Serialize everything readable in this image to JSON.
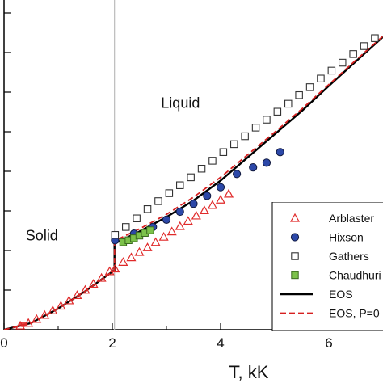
{
  "chart_data": {
    "type": "scatter",
    "xlabel": "T, kK",
    "ylabel": "",
    "xlim": [
      0,
      7
    ],
    "ylim": [
      0,
      4.6
    ],
    "x_ticks": [
      "0",
      "2",
      "4",
      "6"
    ],
    "annotations": [
      {
        "text": "Liquid",
        "x": 2.9,
        "y": 3.35
      },
      {
        "text": "Solid",
        "x": 0.4,
        "y": 1.35
      }
    ],
    "vline": {
      "x": 2.04
    },
    "grid": false,
    "legend": "right",
    "series": [
      {
        "name": "Arblaster",
        "marker": "triangle-open",
        "color": "#e02a2a",
        "points": [
          [
            0.3,
            0.06
          ],
          [
            0.45,
            0.1
          ],
          [
            0.6,
            0.16
          ],
          [
            0.75,
            0.22
          ],
          [
            0.9,
            0.29
          ],
          [
            1.05,
            0.36
          ],
          [
            1.2,
            0.44
          ],
          [
            1.35,
            0.52
          ],
          [
            1.5,
            0.6
          ],
          [
            1.65,
            0.69
          ],
          [
            1.8,
            0.78
          ],
          [
            1.95,
            0.88
          ],
          [
            2.05,
            0.92
          ],
          [
            2.2,
            1.02
          ],
          [
            2.35,
            1.09
          ],
          [
            2.5,
            1.17
          ],
          [
            2.65,
            1.24
          ],
          [
            2.8,
            1.32
          ],
          [
            2.95,
            1.4
          ],
          [
            3.1,
            1.48
          ],
          [
            3.25,
            1.56
          ],
          [
            3.4,
            1.64
          ],
          [
            3.55,
            1.72
          ],
          [
            3.7,
            1.8
          ],
          [
            3.85,
            1.88
          ],
          [
            4.0,
            1.96
          ],
          [
            4.15,
            2.05
          ]
        ]
      },
      {
        "name": "Hixson",
        "marker": "circle",
        "color": "#2c48a8",
        "points": [
          [
            2.05,
            1.35
          ],
          [
            2.4,
            1.45
          ],
          [
            2.75,
            1.55
          ],
          [
            3.0,
            1.66
          ],
          [
            3.25,
            1.78
          ],
          [
            3.5,
            1.9
          ],
          [
            3.75,
            2.02
          ],
          [
            4.0,
            2.15
          ],
          [
            4.3,
            2.35
          ],
          [
            4.6,
            2.45
          ],
          [
            4.85,
            2.52
          ],
          [
            5.1,
            2.68
          ]
        ]
      },
      {
        "name": "Gathers",
        "marker": "square-open",
        "color": "#333333",
        "points": [
          [
            2.05,
            1.43
          ],
          [
            2.25,
            1.55
          ],
          [
            2.45,
            1.68
          ],
          [
            2.65,
            1.82
          ],
          [
            2.85,
            1.94
          ],
          [
            3.05,
            2.06
          ],
          [
            3.25,
            2.18
          ],
          [
            3.45,
            2.3
          ],
          [
            3.65,
            2.43
          ],
          [
            3.85,
            2.55
          ],
          [
            4.05,
            2.68
          ],
          [
            4.25,
            2.8
          ],
          [
            4.45,
            2.92
          ],
          [
            4.65,
            3.05
          ],
          [
            4.85,
            3.17
          ],
          [
            5.05,
            3.29
          ],
          [
            5.25,
            3.41
          ],
          [
            5.45,
            3.54
          ],
          [
            5.65,
            3.66
          ],
          [
            5.85,
            3.79
          ],
          [
            6.05,
            3.91
          ],
          [
            6.25,
            4.03
          ],
          [
            6.45,
            4.16
          ],
          [
            6.65,
            4.28
          ],
          [
            6.85,
            4.4
          ]
        ]
      },
      {
        "name": "Chaudhuri",
        "marker": "square",
        "color": "#7cc24a",
        "points": [
          [
            2.2,
            1.32
          ],
          [
            2.3,
            1.35
          ],
          [
            2.4,
            1.38
          ],
          [
            2.5,
            1.42
          ],
          [
            2.6,
            1.46
          ],
          [
            2.7,
            1.5
          ]
        ]
      },
      {
        "name": "EOS",
        "line": "solid",
        "color": "#000000",
        "points": [
          [
            0.0,
            0.0
          ],
          [
            0.5,
            0.1
          ],
          [
            1.0,
            0.32
          ],
          [
            1.5,
            0.58
          ],
          [
            2.04,
            0.9
          ],
          [
            2.04,
            1.3
          ],
          [
            2.5,
            1.48
          ],
          [
            3.0,
            1.7
          ],
          [
            3.5,
            1.95
          ],
          [
            4.0,
            2.25
          ],
          [
            4.5,
            2.6
          ],
          [
            5.0,
            2.95
          ],
          [
            5.5,
            3.3
          ],
          [
            6.0,
            3.68
          ],
          [
            6.5,
            4.05
          ],
          [
            7.0,
            4.42
          ]
        ]
      },
      {
        "name": "EOS, P=0",
        "line": "dashed",
        "color": "#d62020",
        "points": [
          [
            0.0,
            0.0
          ],
          [
            0.5,
            0.1
          ],
          [
            1.0,
            0.32
          ],
          [
            1.5,
            0.58
          ],
          [
            2.04,
            0.9
          ],
          [
            2.04,
            1.34
          ],
          [
            2.5,
            1.52
          ],
          [
            3.0,
            1.74
          ],
          [
            3.5,
            2.0
          ],
          [
            4.0,
            2.3
          ],
          [
            4.5,
            2.64
          ],
          [
            5.0,
            2.98
          ],
          [
            5.5,
            3.33
          ],
          [
            6.0,
            3.7
          ],
          [
            6.5,
            4.07
          ],
          [
            7.0,
            4.43
          ]
        ]
      }
    ]
  }
}
